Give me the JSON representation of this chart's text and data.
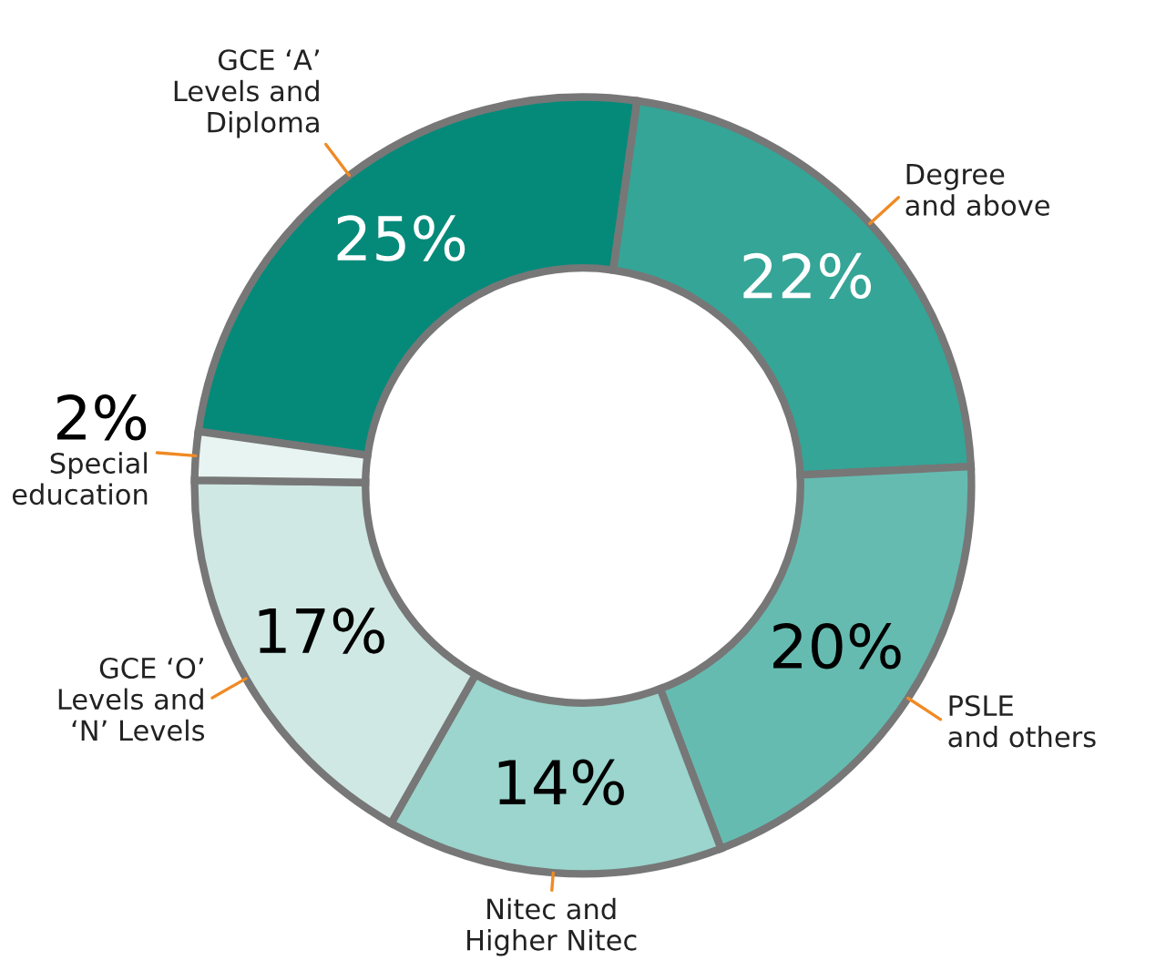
{
  "chart_data": {
    "type": "donut",
    "categories": [
      "GCE ‘A’\nLevels and\nDiploma",
      "Degree\nand above",
      "PSLE\nand others",
      "Nitec and\nHigher Nitec",
      "GCE ‘O’\nLevels and\n‘N’ Levels",
      "Special\neducation"
    ],
    "values": [
      25,
      22,
      20,
      14,
      17,
      2
    ],
    "value_labels": [
      "25%",
      "22%",
      "20%",
      "14%",
      "17%",
      "2%"
    ],
    "colors": [
      "#058a7a",
      "#35a597",
      "#66bbb1",
      "#9bd5cd",
      "#cfe8e4",
      "#e8f4f2"
    ],
    "legend": false
  }
}
